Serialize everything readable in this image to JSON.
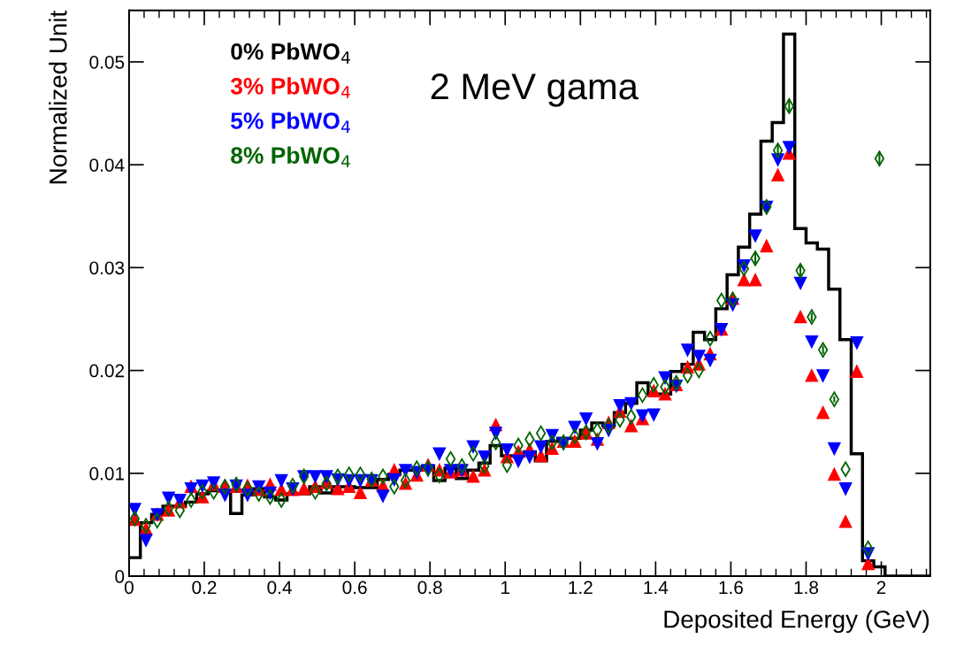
{
  "chart_data": {
    "type": "histogram",
    "xlabel": "Deposited Energy (GeV)",
    "ylabel": "Normalized Unit",
    "annotations": [
      "2 MeV gama"
    ],
    "bins": [
      0,
      0.03,
      0.06,
      0.09,
      0.12,
      0.15,
      0.18,
      0.21,
      0.24,
      0.27,
      0.3,
      0.33,
      0.36,
      0.39,
      0.42,
      0.45,
      0.48,
      0.51,
      0.54,
      0.57,
      0.6,
      0.63,
      0.66,
      0.69,
      0.72,
      0.75,
      0.78,
      0.81,
      0.84,
      0.87,
      0.9,
      0.93,
      0.96,
      0.99,
      1.02,
      1.05,
      1.08,
      1.11,
      1.14,
      1.17,
      1.2,
      1.23,
      1.26,
      1.29,
      1.32,
      1.35,
      1.38,
      1.41,
      1.44,
      1.47,
      1.5,
      1.53,
      1.56,
      1.59,
      1.62,
      1.65,
      1.68,
      1.71,
      1.74,
      1.77,
      1.8,
      1.83,
      1.86,
      1.89,
      1.92,
      1.95,
      1.98,
      2.01,
      2.04,
      2.07,
      2.1,
      2.13
    ],
    "x": [
      0.015,
      0.045,
      0.075,
      0.105,
      0.135,
      0.165,
      0.195,
      0.225,
      0.255,
      0.285,
      0.315,
      0.345,
      0.375,
      0.405,
      0.435,
      0.465,
      0.495,
      0.525,
      0.555,
      0.585,
      0.615,
      0.645,
      0.675,
      0.705,
      0.735,
      0.765,
      0.795,
      0.825,
      0.855,
      0.885,
      0.915,
      0.945,
      0.975,
      1.005,
      1.035,
      1.065,
      1.095,
      1.125,
      1.155,
      1.185,
      1.215,
      1.245,
      1.275,
      1.305,
      1.335,
      1.365,
      1.395,
      1.425,
      1.455,
      1.485,
      1.515,
      1.545,
      1.575,
      1.605,
      1.635,
      1.665,
      1.695,
      1.725,
      1.755,
      1.785,
      1.815,
      1.845,
      1.875,
      1.905,
      1.935,
      1.965,
      1.995,
      2.025,
      2.055,
      2.085,
      2.115
    ],
    "xlim": [
      0,
      2.13
    ],
    "ylim": [
      0,
      0.055
    ],
    "xticks": [
      0,
      0.2,
      0.4,
      0.6,
      0.8,
      1,
      1.2,
      1.4,
      1.6,
      1.8,
      2
    ],
    "yticks": [
      0,
      0.01,
      0.02,
      0.03,
      0.04,
      0.05
    ],
    "grid": false,
    "legend": "top left",
    "series": [
      {
        "name": "0% PbWO$_{4}$",
        "type": "histogram",
        "color": "#000000",
        "values": [
          0.0018,
          0.0052,
          0.006,
          0.0068,
          0.0068,
          0.0072,
          0.008,
          0.0083,
          0.0083,
          0.0061,
          0.0079,
          0.0085,
          0.0077,
          0.0074,
          0.008,
          0.008,
          0.0087,
          0.0081,
          0.0087,
          0.0087,
          0.0086,
          0.0086,
          0.0094,
          0.0099,
          0.0103,
          0.0103,
          0.0107,
          0.0093,
          0.0105,
          0.0095,
          0.0103,
          0.011,
          0.0127,
          0.0117,
          0.0117,
          0.0121,
          0.0112,
          0.0131,
          0.0134,
          0.0134,
          0.0142,
          0.0149,
          0.0146,
          0.0159,
          0.0168,
          0.0188,
          0.0177,
          0.0177,
          0.0199,
          0.0206,
          0.0237,
          0.023,
          0.026,
          0.0293,
          0.032,
          0.0352,
          0.0423,
          0.0441,
          0.0527,
          0.0338,
          0.0324,
          0.0318,
          0.0279,
          0.023,
          0.0119,
          0.0015,
          0.0009,
          0,
          0,
          0,
          0
        ]
      },
      {
        "name": "3% PbWO$_{4}$",
        "type": "scatter",
        "marker": "triangle",
        "color": "#ff0000",
        "values": [
          0.0055,
          0.0046,
          0.006,
          0.0064,
          0.0072,
          0.0087,
          0.0077,
          0.0089,
          0.0087,
          0.0087,
          0.0088,
          0.0084,
          0.0089,
          0.0084,
          0.0084,
          0.0085,
          0.0087,
          0.0091,
          0.0085,
          0.0087,
          0.0081,
          0.0093,
          0.0088,
          0.0103,
          0.009,
          0.0098,
          0.0108,
          0.0103,
          0.0101,
          0.0103,
          0.0097,
          0.0103,
          0.0147,
          0.0116,
          0.0121,
          0.0123,
          0.0117,
          0.0124,
          0.0131,
          0.0131,
          0.0139,
          0.0133,
          0.0149,
          0.016,
          0.0146,
          0.0153,
          0.018,
          0.0177,
          0.0186,
          0.0203,
          0.0206,
          0.0216,
          0.024,
          0.027,
          0.0288,
          0.0288,
          0.0321,
          0.039,
          0.0411,
          0.0252,
          0.0195,
          0.0159,
          0.0099,
          0.0053,
          0.0199,
          0.0012,
          null,
          null,
          null,
          null,
          null
        ],
        "errors": [
          null,
          null,
          null,
          null,
          null,
          null,
          null,
          null,
          null,
          null,
          null,
          null,
          null,
          null,
          null,
          null,
          null,
          null,
          null,
          null,
          null,
          null,
          null,
          null,
          null,
          null,
          null,
          null,
          null,
          null,
          null,
          null,
          0.0004,
          null,
          null,
          null,
          null,
          null,
          null,
          null,
          null,
          null,
          null,
          null,
          null,
          null,
          null,
          null,
          null,
          null,
          null,
          null,
          null,
          null,
          null,
          null,
          0.0004,
          0.0005,
          0.0005,
          0.0004,
          0.0003,
          0.0003,
          null,
          null,
          0.0003,
          null,
          null,
          null,
          null,
          null,
          null
        ]
      },
      {
        "name": "5% PbWO$_{4}$",
        "type": "scatter",
        "marker": "triangle-down",
        "color": "#0000ff",
        "values": [
          0.0065,
          0.0035,
          0.006,
          0.0076,
          0.0074,
          0.0085,
          0.0088,
          0.0091,
          0.0079,
          0.0088,
          0.0079,
          0.0087,
          0.0081,
          0.0093,
          0.0085,
          0.0097,
          0.0097,
          0.0097,
          0.0094,
          0.0093,
          0.0093,
          0.0093,
          0.0078,
          0.0094,
          0.0103,
          0.0101,
          0.0103,
          0.0119,
          0.0103,
          0.0103,
          0.0126,
          0.0116,
          0.0139,
          0.0123,
          0.0112,
          0.0116,
          0.0126,
          0.0137,
          0.0129,
          0.0145,
          0.0153,
          0.0129,
          0.0142,
          0.0166,
          0.0168,
          0.0156,
          0.0157,
          0.0193,
          0.0185,
          0.022,
          0.0214,
          0.021,
          0.024,
          0.0264,
          0.0302,
          0.0331,
          0.0359,
          0.0405,
          0.0417,
          0.0285,
          0.0228,
          0.0195,
          0.0124,
          0.0085,
          0.0227,
          0.0022,
          null,
          null,
          null,
          null,
          null
        ],
        "errors": [
          null,
          null,
          null,
          null,
          null,
          null,
          null,
          null,
          null,
          null,
          null,
          null,
          null,
          null,
          null,
          null,
          null,
          null,
          null,
          null,
          null,
          null,
          null,
          null,
          null,
          null,
          null,
          null,
          null,
          null,
          null,
          null,
          null,
          null,
          null,
          null,
          null,
          null,
          null,
          null,
          null,
          null,
          null,
          null,
          null,
          null,
          null,
          null,
          null,
          null,
          null,
          null,
          null,
          null,
          null,
          0.0004,
          0.0004,
          0.0005,
          0.0005,
          0.0004,
          0.0003,
          0.0003,
          null,
          null,
          0.0003,
          null,
          null,
          null,
          null,
          null,
          null
        ]
      },
      {
        "name": "8% PbWO$_{4}$",
        "type": "scatter",
        "marker": "diamond",
        "color": "#006400",
        "values": [
          0.0056,
          0.0049,
          0.0054,
          0.0066,
          0.0064,
          0.0074,
          0.0082,
          0.0082,
          0.0087,
          0.0089,
          0.0085,
          0.008,
          0.0077,
          0.0074,
          0.0088,
          0.0097,
          0.0082,
          0.009,
          0.0097,
          0.0099,
          0.0099,
          0.0094,
          0.0097,
          0.0087,
          0.0093,
          0.0105,
          0.0105,
          0.0098,
          0.0114,
          0.0107,
          0.0119,
          0.0107,
          0.013,
          0.0108,
          0.0127,
          0.0133,
          0.0139,
          0.013,
          0.013,
          0.0136,
          0.014,
          0.0142,
          0.0146,
          0.0152,
          0.0155,
          0.0176,
          0.0186,
          0.0184,
          0.0188,
          0.0195,
          0.02,
          0.0231,
          0.0268,
          0.0269,
          0.0299,
          0.0309,
          0.0359,
          0.0414,
          0.0457,
          0.0297,
          0.0252,
          0.022,
          0.0172,
          0.0104,
          null,
          0.0027,
          0.0406,
          null,
          null,
          null,
          null
        ],
        "errors": [
          null,
          null,
          null,
          null,
          null,
          null,
          null,
          null,
          null,
          null,
          null,
          null,
          null,
          null,
          null,
          null,
          null,
          null,
          null,
          null,
          null,
          null,
          null,
          null,
          null,
          null,
          null,
          null,
          null,
          null,
          null,
          null,
          null,
          null,
          null,
          null,
          null,
          null,
          null,
          null,
          null,
          null,
          null,
          null,
          null,
          null,
          null,
          null,
          null,
          null,
          null,
          null,
          null,
          null,
          null,
          0.0005,
          0.0005,
          0.0006,
          0.0007,
          0.0005,
          0.0004,
          0.0004,
          0.0003,
          null,
          null,
          null,
          0.0007,
          null,
          null,
          null,
          null
        ]
      }
    ]
  }
}
